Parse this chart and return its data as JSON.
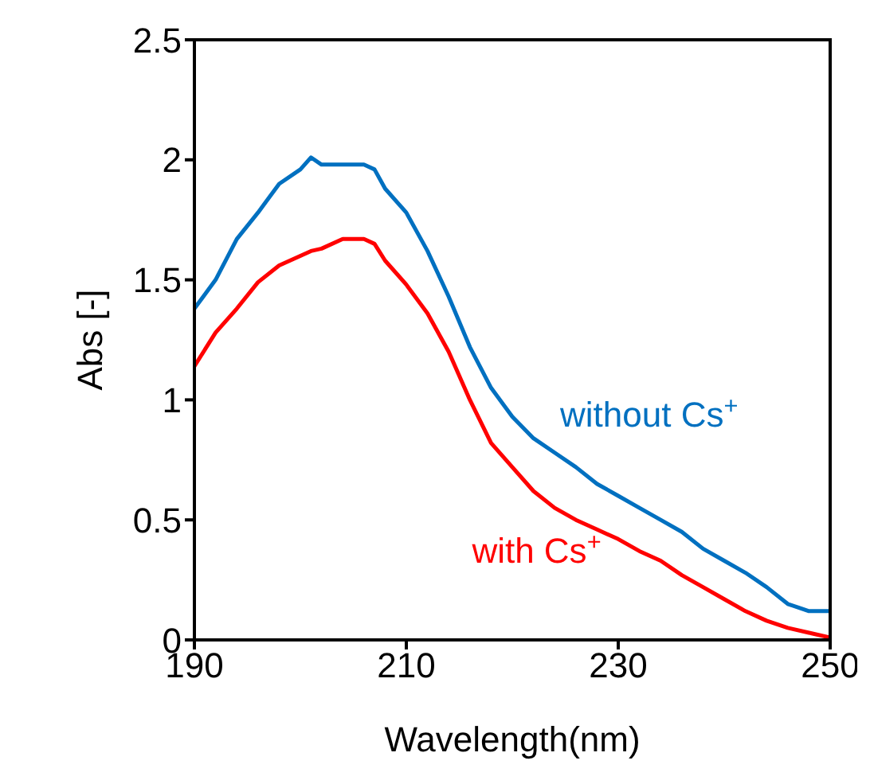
{
  "chart_data": {
    "type": "line",
    "xlabel": "Wavelength(nm)",
    "ylabel": "Abs [-]",
    "x": [
      190,
      192,
      194,
      196,
      198,
      200,
      201,
      202,
      204,
      206,
      207,
      208,
      210,
      212,
      214,
      216,
      218,
      220,
      222,
      224,
      226,
      228,
      230,
      232,
      234,
      236,
      238,
      240,
      242,
      244,
      246,
      248,
      250
    ],
    "series": [
      {
        "name": "without Cs$^{+}$",
        "color": "#0070c0",
        "values": [
          1.38,
          1.5,
          1.67,
          1.78,
          1.9,
          1.96,
          2.01,
          1.98,
          1.98,
          1.98,
          1.96,
          1.88,
          1.78,
          1.62,
          1.43,
          1.22,
          1.05,
          0.93,
          0.84,
          0.78,
          0.72,
          0.65,
          0.6,
          0.55,
          0.5,
          0.45,
          0.38,
          0.33,
          0.28,
          0.22,
          0.15,
          0.12,
          0.12
        ]
      },
      {
        "name": "with Cs$^{+}$",
        "color": "#ff0000",
        "values": [
          1.14,
          1.28,
          1.38,
          1.49,
          1.56,
          1.6,
          1.62,
          1.63,
          1.67,
          1.67,
          1.65,
          1.58,
          1.48,
          1.36,
          1.2,
          1.0,
          0.82,
          0.72,
          0.62,
          0.55,
          0.5,
          0.46,
          0.42,
          0.37,
          0.33,
          0.27,
          0.22,
          0.17,
          0.12,
          0.08,
          0.05,
          0.03,
          0.01
        ]
      }
    ],
    "xlim": [
      190,
      250
    ],
    "xticks": [
      190,
      210,
      230,
      250
    ],
    "ylim": [
      0,
      2.5
    ],
    "yticks": [
      0,
      0.5,
      1,
      1.5,
      2,
      2.5
    ],
    "grid": false,
    "legend": false,
    "marker": "none",
    "line_style": "solid"
  }
}
